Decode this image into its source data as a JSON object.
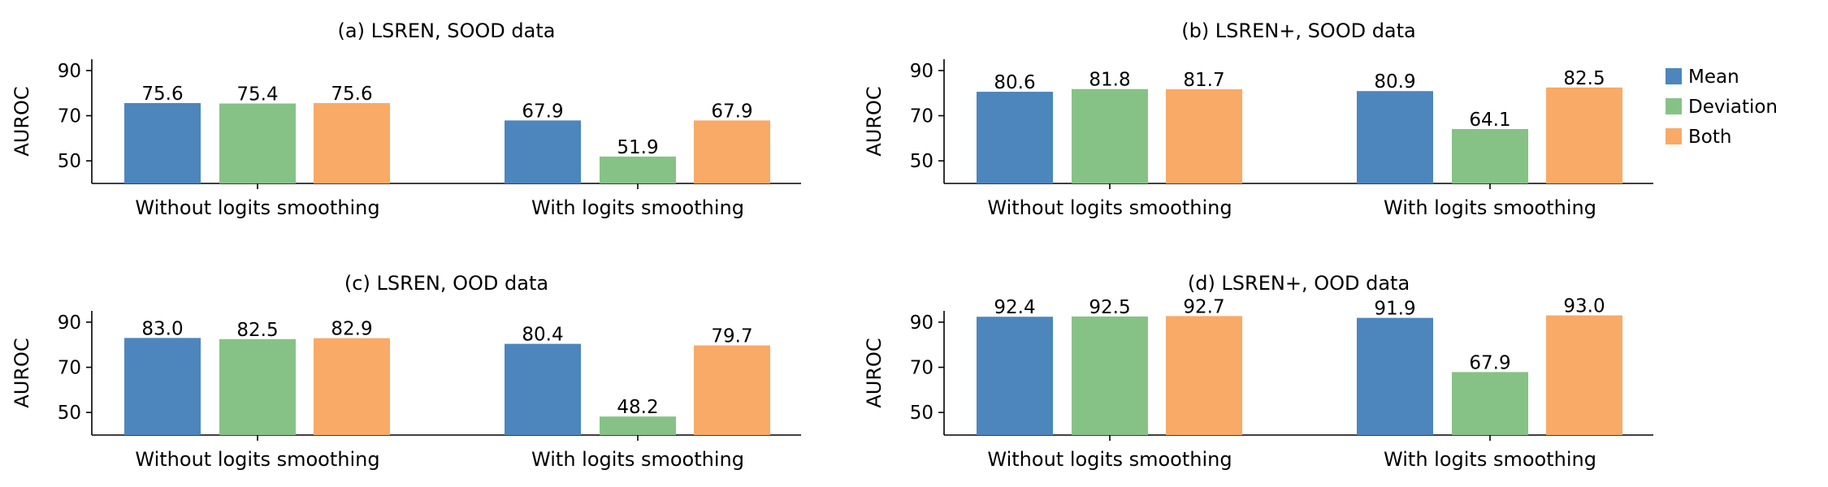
{
  "colors": {
    "Mean": "#4c86bd",
    "Deviation": "#86c285",
    "Both": "#f8aa66"
  },
  "legend": [
    "Mean",
    "Deviation",
    "Both"
  ],
  "chart_data": [
    {
      "type": "bar",
      "title": "(a) LSREN, SOOD data",
      "ylabel": "AUROC",
      "ylim": [
        40,
        95
      ],
      "yticks": [
        50,
        70,
        90
      ],
      "categories": [
        "Without logits smoothing",
        "With logits smoothing"
      ],
      "series": [
        {
          "name": "Mean",
          "values": [
            75.6,
            67.9
          ]
        },
        {
          "name": "Deviation",
          "values": [
            75.4,
            51.9
          ]
        },
        {
          "name": "Both",
          "values": [
            75.6,
            67.9
          ]
        }
      ]
    },
    {
      "type": "bar",
      "title": "(b) LSREN+, SOOD data",
      "ylabel": "AUROC",
      "ylim": [
        40,
        95
      ],
      "yticks": [
        50,
        70,
        90
      ],
      "categories": [
        "Without logits smoothing",
        "With logits smoothing"
      ],
      "series": [
        {
          "name": "Mean",
          "values": [
            80.6,
            80.9
          ]
        },
        {
          "name": "Deviation",
          "values": [
            81.8,
            64.1
          ]
        },
        {
          "name": "Both",
          "values": [
            81.7,
            82.5
          ]
        }
      ]
    },
    {
      "type": "bar",
      "title": "(c) LSREN, OOD data",
      "ylabel": "AUROC",
      "ylim": [
        40,
        95
      ],
      "yticks": [
        50,
        70,
        90
      ],
      "categories": [
        "Without logits smoothing",
        "With logits smoothing"
      ],
      "series": [
        {
          "name": "Mean",
          "values": [
            83.0,
            80.4
          ]
        },
        {
          "name": "Deviation",
          "values": [
            82.5,
            48.2
          ]
        },
        {
          "name": "Both",
          "values": [
            82.9,
            79.7
          ]
        }
      ]
    },
    {
      "type": "bar",
      "title": "(d) LSREN+, OOD data",
      "ylabel": "AUROC",
      "ylim": [
        40,
        95
      ],
      "yticks": [
        50,
        70,
        90
      ],
      "categories": [
        "Without logits smoothing",
        "With logits smoothing"
      ],
      "series": [
        {
          "name": "Mean",
          "values": [
            92.4,
            91.9
          ]
        },
        {
          "name": "Deviation",
          "values": [
            92.5,
            67.9
          ]
        },
        {
          "name": "Both",
          "values": [
            92.7,
            93.0
          ]
        }
      ]
    }
  ]
}
